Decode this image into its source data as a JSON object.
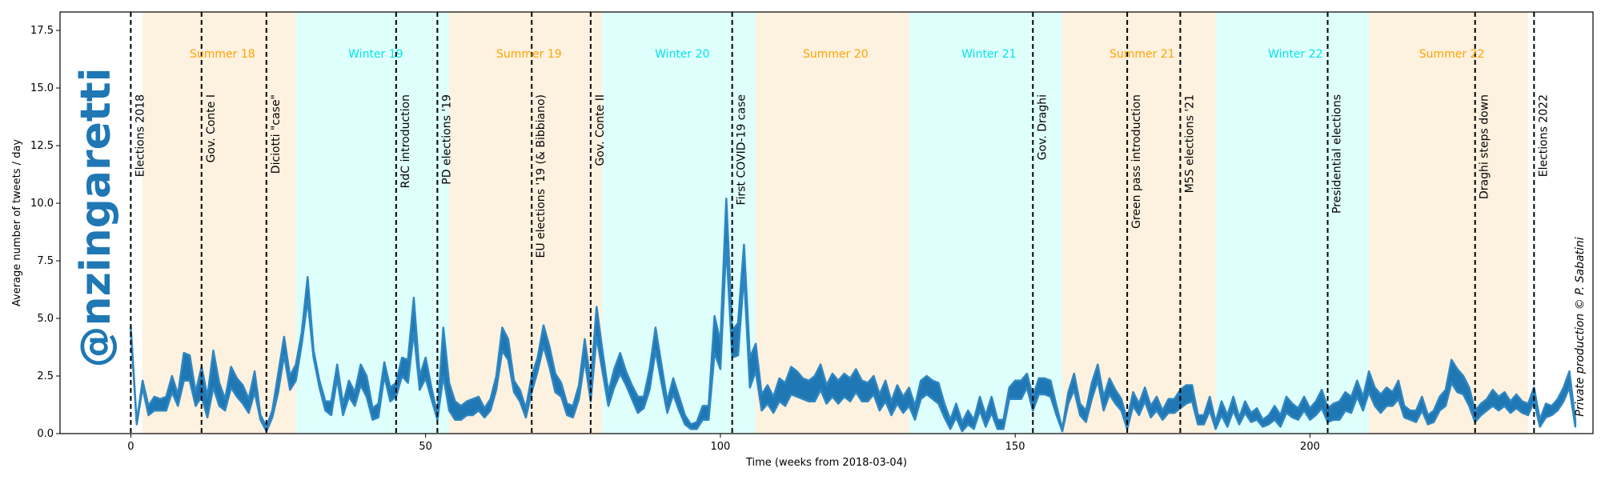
{
  "chart_data": {
    "type": "area",
    "handle": "@nzingaretti",
    "credit": "Private production © P. Sabatini",
    "xlabel": "Time (weeks from 2018-03-04)",
    "ylabel": "Average number of tweets / day",
    "xlim": [
      -12,
      248
    ],
    "ylim": [
      0,
      18.3
    ],
    "xticks": [
      0,
      50,
      100,
      150,
      200
    ],
    "yticks": [
      0.0,
      2.5,
      5.0,
      7.5,
      10.0,
      12.5,
      15.0,
      17.5
    ],
    "colors": {
      "summer": "#fdf1df",
      "winter": "#dffffd",
      "summer_text": "#ffa500",
      "winter_text": "#00e5ee",
      "band": "#1f77b4",
      "band_light": "#2e86c1"
    },
    "seasons": [
      {
        "label": "Summer 18",
        "kind": "summer",
        "start": 2,
        "end": 28
      },
      {
        "label": "Winter 19",
        "kind": "winter",
        "start": 28,
        "end": 54
      },
      {
        "label": "Summer 19",
        "kind": "summer",
        "start": 54,
        "end": 80
      },
      {
        "label": "Winter 20",
        "kind": "winter",
        "start": 80,
        "end": 106
      },
      {
        "label": "Summer 20",
        "kind": "summer",
        "start": 106,
        "end": 132
      },
      {
        "label": "Winter 21",
        "kind": "winter",
        "start": 132,
        "end": 158
      },
      {
        "label": "Summer 21",
        "kind": "summer",
        "start": 158,
        "end": 184
      },
      {
        "label": "Winter 22",
        "kind": "winter",
        "start": 184,
        "end": 210
      },
      {
        "label": "Summer 22",
        "kind": "summer",
        "start": 210,
        "end": 237
      }
    ],
    "events": [
      {
        "week": 0,
        "label": "Elections 2018"
      },
      {
        "week": 12,
        "label": "Gov. Conte I"
      },
      {
        "week": 23,
        "label": "Diciotti \"case\""
      },
      {
        "week": 45,
        "label": "RdC introduction"
      },
      {
        "week": 52,
        "label": "PD elections '19"
      },
      {
        "week": 68,
        "label": "EU elections '19 (& Bibbiano)"
      },
      {
        "week": 78,
        "label": "Gov. Conte II"
      },
      {
        "week": 102,
        "label": "First COVID-19 case"
      },
      {
        "week": 153,
        "label": "Gov. Draghi"
      },
      {
        "week": 169,
        "label": "Green pass introduction"
      },
      {
        "week": 178,
        "label": "M5S elections '21"
      },
      {
        "week": 203,
        "label": "Presidential elections"
      },
      {
        "week": 228,
        "label": "Draghi steps down"
      },
      {
        "week": 238,
        "label": "Elections 2022"
      }
    ],
    "series": [
      {
        "lower": [
          4.5,
          0.4,
          2.0,
          0.8,
          1.0,
          1.0,
          1.0,
          1.8,
          1.2,
          2.3,
          2.3,
          1.2,
          1.6,
          0.7,
          2.0,
          1.2,
          1.0,
          2.0,
          1.6,
          1.3,
          0.9,
          1.8,
          0.6,
          0.1,
          0.7,
          1.8,
          3.4,
          1.9,
          2.3,
          3.9,
          5.8,
          3.3,
          2.0,
          1.0,
          0.8,
          2.4,
          0.8,
          1.6,
          1.2,
          2.1,
          1.6,
          0.6,
          0.7,
          2.5,
          1.4,
          1.6,
          2.5,
          2.2,
          4.4,
          1.9,
          2.4,
          1.5,
          0.6,
          2.5,
          1.0,
          0.6,
          0.6,
          0.8,
          0.8,
          1.0,
          0.7,
          1.0,
          1.9,
          3.6,
          3.2,
          1.8,
          1.4,
          0.7,
          1.8,
          2.7,
          3.8,
          2.9,
          1.8,
          1.6,
          0.8,
          0.7,
          1.5,
          3.2,
          1.4,
          4.2,
          2.7,
          1.2,
          2.0,
          2.6,
          2.1,
          1.5,
          0.9,
          1.1,
          1.9,
          3.6,
          2.2,
          0.9,
          1.7,
          1.0,
          0.4,
          0.2,
          0.2,
          0.6,
          0.6,
          3.5,
          2.8,
          8.2,
          3.3,
          3.4,
          6.9,
          2.0,
          2.7,
          1.0,
          1.3,
          0.9,
          1.4,
          1.2,
          1.7,
          1.6,
          1.5,
          1.4,
          1.4,
          1.9,
          1.3,
          1.6,
          1.3,
          1.6,
          1.4,
          1.8,
          1.4,
          1.4,
          1.7,
          1.0,
          1.4,
          0.8,
          1.3,
          0.9,
          1.2,
          0.6,
          1.5,
          1.7,
          1.5,
          1.3,
          0.7,
          0.2,
          0.7,
          0.1,
          0.4,
          0.2,
          1.0,
          0.3,
          0.9,
          0.2,
          0.2,
          1.5,
          1.5,
          1.5,
          2.0,
          1.0,
          1.7,
          1.7,
          1.6,
          0.8,
          0.1,
          1.3,
          1.9,
          0.8,
          0.5,
          1.5,
          2.3,
          1.0,
          1.7,
          1.3,
          1.0,
          0.2,
          1.2,
          0.8,
          1.4,
          0.7,
          1.0,
          0.6,
          0.9,
          0.9,
          1.1,
          1.3,
          1.4,
          0.4,
          0.4,
          1.0,
          0.2,
          0.8,
          0.3,
          1.0,
          0.4,
          0.9,
          0.5,
          0.6,
          0.3,
          0.4,
          0.6,
          0.3,
          0.9,
          0.7,
          0.6,
          1.0,
          0.6,
          0.8,
          1.1,
          0.5,
          0.6,
          0.6,
          1.0,
          0.9,
          1.6,
          1.0,
          1.8,
          1.2,
          0.9,
          1.2,
          1.2,
          1.5,
          0.7,
          0.6,
          0.5,
          1.0,
          0.4,
          0.5,
          1.0,
          1.2,
          2.2,
          1.8,
          1.7,
          1.2,
          0.5,
          0.8,
          1.0,
          1.2,
          1.0,
          1.2,
          0.9,
          1.1,
          0.9,
          0.8,
          1.4,
          0.3,
          0.7,
          0.8,
          1.0,
          1.4,
          2.0,
          0.3
        ],
        "upper": [
          4.6,
          0.5,
          2.3,
          1.2,
          1.6,
          1.5,
          1.6,
          2.5,
          1.7,
          3.5,
          3.4,
          1.8,
          2.9,
          1.6,
          3.6,
          2.2,
          1.5,
          2.9,
          2.4,
          2.1,
          1.5,
          2.7,
          0.8,
          0.3,
          1.0,
          2.6,
          4.2,
          2.5,
          3.0,
          4.4,
          6.8,
          3.6,
          2.3,
          1.4,
          1.4,
          3.0,
          1.3,
          2.3,
          1.8,
          3.0,
          2.5,
          1.1,
          1.3,
          3.1,
          2.0,
          2.2,
          3.3,
          3.2,
          5.9,
          2.5,
          3.3,
          2.0,
          0.8,
          4.6,
          2.2,
          1.4,
          1.2,
          1.4,
          1.5,
          1.6,
          1.1,
          1.5,
          2.5,
          4.6,
          4.1,
          2.3,
          1.9,
          1.1,
          2.5,
          3.3,
          4.7,
          3.8,
          2.6,
          2.2,
          1.3,
          1.2,
          2.1,
          4.1,
          2.2,
          5.5,
          3.6,
          1.8,
          2.8,
          3.5,
          2.7,
          2.1,
          1.6,
          1.6,
          2.8,
          4.6,
          3.0,
          1.4,
          2.4,
          1.6,
          0.8,
          0.4,
          0.5,
          1.2,
          1.2,
          5.1,
          4.0,
          10.2,
          4.5,
          4.8,
          8.2,
          3.3,
          3.9,
          1.7,
          2.1,
          1.6,
          2.4,
          2.2,
          2.9,
          2.7,
          2.4,
          2.3,
          2.5,
          3.0,
          2.1,
          2.6,
          2.3,
          2.6,
          2.4,
          2.8,
          2.3,
          2.2,
          2.5,
          1.7,
          2.3,
          1.4,
          2.1,
          1.6,
          2.0,
          1.2,
          2.3,
          2.5,
          2.3,
          2.2,
          1.3,
          0.6,
          1.3,
          0.5,
          1.0,
          0.6,
          1.6,
          0.8,
          1.6,
          0.6,
          0.6,
          2.0,
          2.3,
          2.3,
          2.6,
          1.6,
          2.4,
          2.4,
          2.3,
          1.2,
          0.2,
          1.8,
          2.6,
          1.3,
          1.0,
          2.2,
          3.0,
          1.6,
          2.4,
          1.9,
          1.5,
          0.6,
          1.8,
          1.3,
          2.0,
          1.2,
          1.6,
          1.0,
          1.5,
          1.5,
          1.9,
          2.1,
          2.1,
          0.8,
          0.8,
          1.6,
          0.5,
          1.4,
          0.8,
          1.6,
          0.7,
          1.4,
          0.9,
          1.1,
          0.6,
          0.8,
          1.2,
          0.8,
          1.6,
          1.3,
          1.1,
          1.6,
          1.1,
          1.4,
          1.9,
          1.1,
          1.3,
          1.4,
          1.8,
          1.6,
          2.3,
          1.6,
          2.7,
          2.0,
          1.7,
          2.0,
          1.8,
          2.3,
          1.2,
          1.0,
          1.0,
          1.6,
          0.8,
          1.0,
          1.6,
          1.9,
          3.2,
          2.8,
          2.5,
          2.0,
          1.0,
          1.3,
          1.5,
          1.9,
          1.6,
          1.8,
          1.4,
          1.7,
          1.4,
          1.3,
          2.0,
          0.6,
          1.3,
          1.2,
          1.5,
          2.0,
          2.7,
          0.6
        ]
      }
    ]
  }
}
